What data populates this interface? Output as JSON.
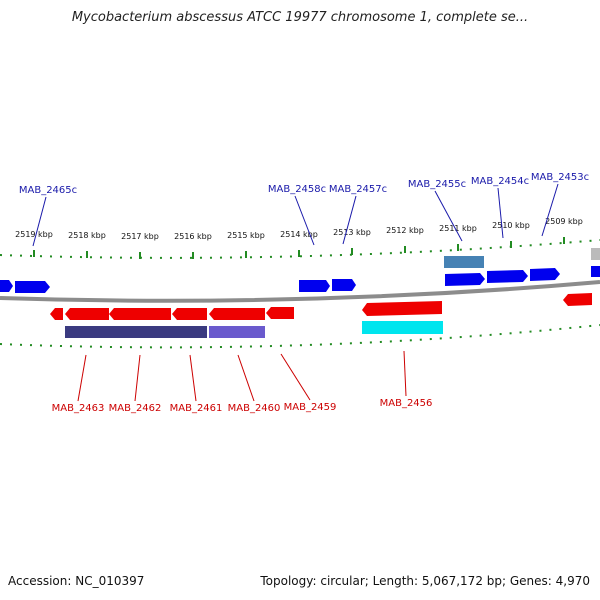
{
  "title": "Mycobacterium abscessus ATCC 19977 chromosome 1, complete se...",
  "footer": {
    "accession": "Accession: NC_010397",
    "summary": "Topology: circular; Length: 5,067,172 bp; Genes: 4,970"
  },
  "colors": {
    "forward_gene": "#0000ee",
    "reverse_gene": "#ee0000",
    "forward_label": "#1a1aaa",
    "reverse_label": "#cc0000",
    "backbone": "#888888",
    "tick": "#228b22",
    "cyan_feature": "#00e5ee",
    "dark_feature": "#3a3a80",
    "violet_feature": "#6a5acd",
    "steel_feature": "#4682b4"
  },
  "kbp_ticks": [
    "2519 kbp",
    "2518 kbp",
    "2517 kbp",
    "2516 kbp",
    "2515 kbp",
    "2514 kbp",
    "2513 kbp",
    "2512 kbp",
    "2511 kbp",
    "2510 kbp",
    "2509 kbp"
  ],
  "top_genes": [
    "MAB_2465c",
    "MAB_2458c",
    "MAB_2457c",
    "MAB_2455c",
    "MAB_2454c",
    "MAB_2453c"
  ],
  "bottom_genes": [
    "MAB_2463",
    "MAB_2462",
    "MAB_2461",
    "MAB_2460",
    "MAB_2459",
    "MAB_2456"
  ]
}
